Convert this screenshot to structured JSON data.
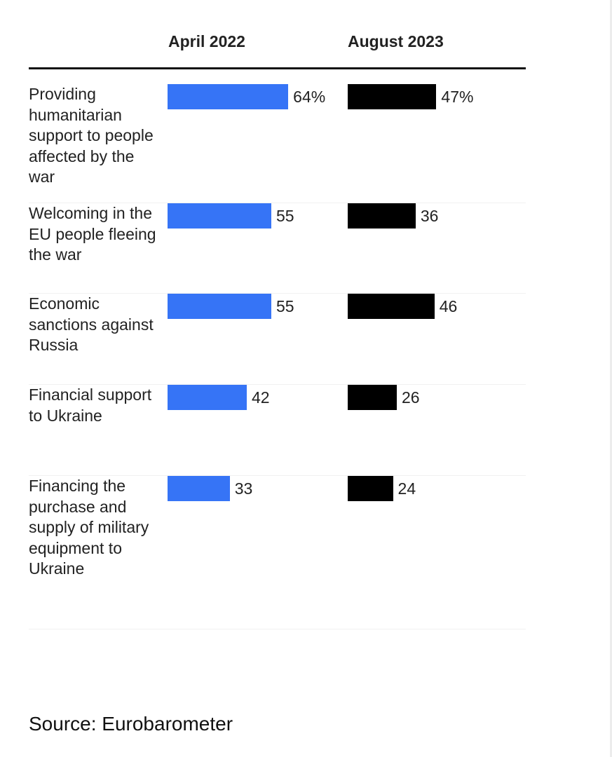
{
  "chart_data": {
    "type": "bar",
    "orientation": "horizontal",
    "categories": [
      "Providing humanitarian support to people affected by the war",
      "Welcoming in the EU people fleeing the war",
      "Economic sanctions against Russia",
      "Financial support to Ukraine",
      "Financing the purchase and supply of military equipment to Ukraine"
    ],
    "series": [
      {
        "name": "April 2022",
        "color": "#3674f6",
        "values": [
          64,
          55,
          55,
          42,
          33
        ],
        "labels": [
          "64%",
          "55",
          "55",
          "42",
          "33"
        ]
      },
      {
        "name": "August 2023",
        "color": "#000000",
        "values": [
          47,
          36,
          46,
          26,
          24
        ],
        "labels": [
          "47%",
          "36",
          "46",
          "26",
          "24"
        ]
      }
    ],
    "xlim": [
      0,
      100
    ],
    "source": "Source: Eurobarometer"
  }
}
